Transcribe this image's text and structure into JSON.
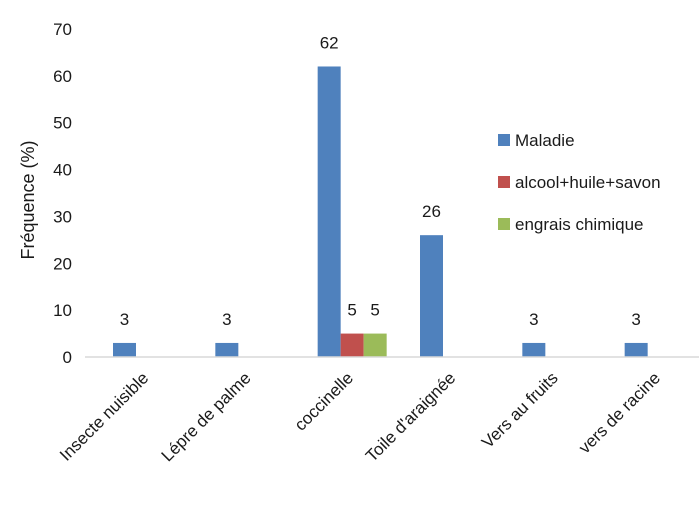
{
  "chart_data": {
    "type": "bar",
    "categories": [
      "Insecte nuisible",
      "Lépre de palme",
      "coccinelle",
      "Toile d'araignée",
      "Vers au fruits",
      "vers de racine"
    ],
    "series": [
      {
        "name": "Maladie",
        "values": [
          3,
          3,
          62,
          26,
          3,
          3
        ],
        "color": "#4F81BD"
      },
      {
        "name": "alcool+huile+savon",
        "values": [
          null,
          null,
          5,
          null,
          null,
          null
        ],
        "color": "#C0504D"
      },
      {
        "name": "engrais chimique",
        "values": [
          null,
          null,
          5,
          null,
          null,
          null
        ],
        "color": "#9BBB59"
      }
    ],
    "title": "",
    "xlabel": "",
    "ylabel": "Fréquence (%)",
    "ylim": [
      0,
      70
    ],
    "yticks": [
      0,
      10,
      20,
      30,
      40,
      50,
      60,
      70
    ],
    "grid": false,
    "legend_position": "right"
  }
}
